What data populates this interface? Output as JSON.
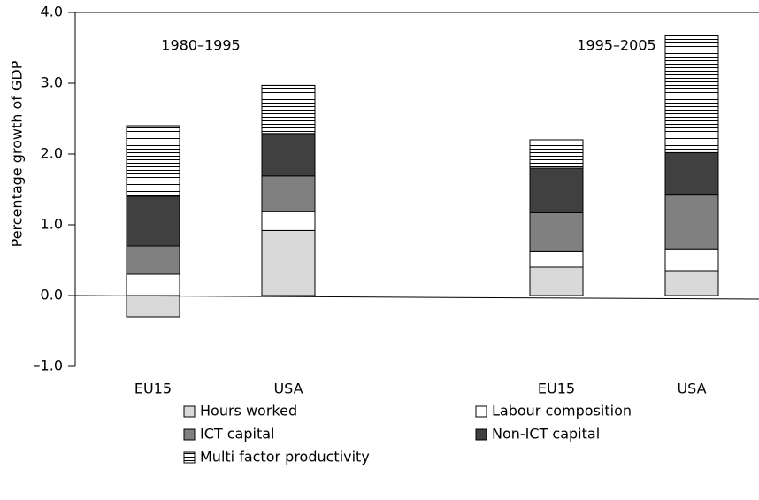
{
  "chart_data": {
    "type": "stacked-bar",
    "y_label": "Percentage growth of GDP",
    "annotations": [
      "1980–1995",
      "1995–2005"
    ],
    "categories": [
      "EU15",
      "USA",
      "EU15",
      "USA"
    ],
    "series": [
      {
        "name": "Hours worked",
        "color": "#d9d9d9",
        "values": [
          -0.3,
          0.92,
          0.4,
          0.35
        ]
      },
      {
        "name": "Labour composition",
        "color": "#ffffff",
        "values": [
          0.3,
          0.27,
          0.22,
          0.31
        ]
      },
      {
        "name": "ICT capital",
        "color": "#808080",
        "values": [
          0.4,
          0.5,
          0.55,
          0.77
        ]
      },
      {
        "name": "Non-ICT capital",
        "color": "#404040",
        "values": [
          0.7,
          0.6,
          0.63,
          0.59
        ]
      },
      {
        "name": "Multi factor productivity",
        "color": "#ffffff",
        "hatch": "horizontal",
        "values": [
          1.0,
          0.68,
          0.4,
          1.66
        ]
      }
    ],
    "ylim": [
      -1,
      4
    ],
    "yticks": [
      {
        "value": -1,
        "label": "–1.0"
      },
      {
        "value": 0,
        "label": "0.0"
      },
      {
        "value": 1,
        "label": "1.0"
      },
      {
        "value": 2,
        "label": "2.0"
      },
      {
        "value": 3,
        "label": "3.0"
      },
      {
        "value": 4,
        "label": "4.0"
      }
    ],
    "legend": "bottom"
  }
}
